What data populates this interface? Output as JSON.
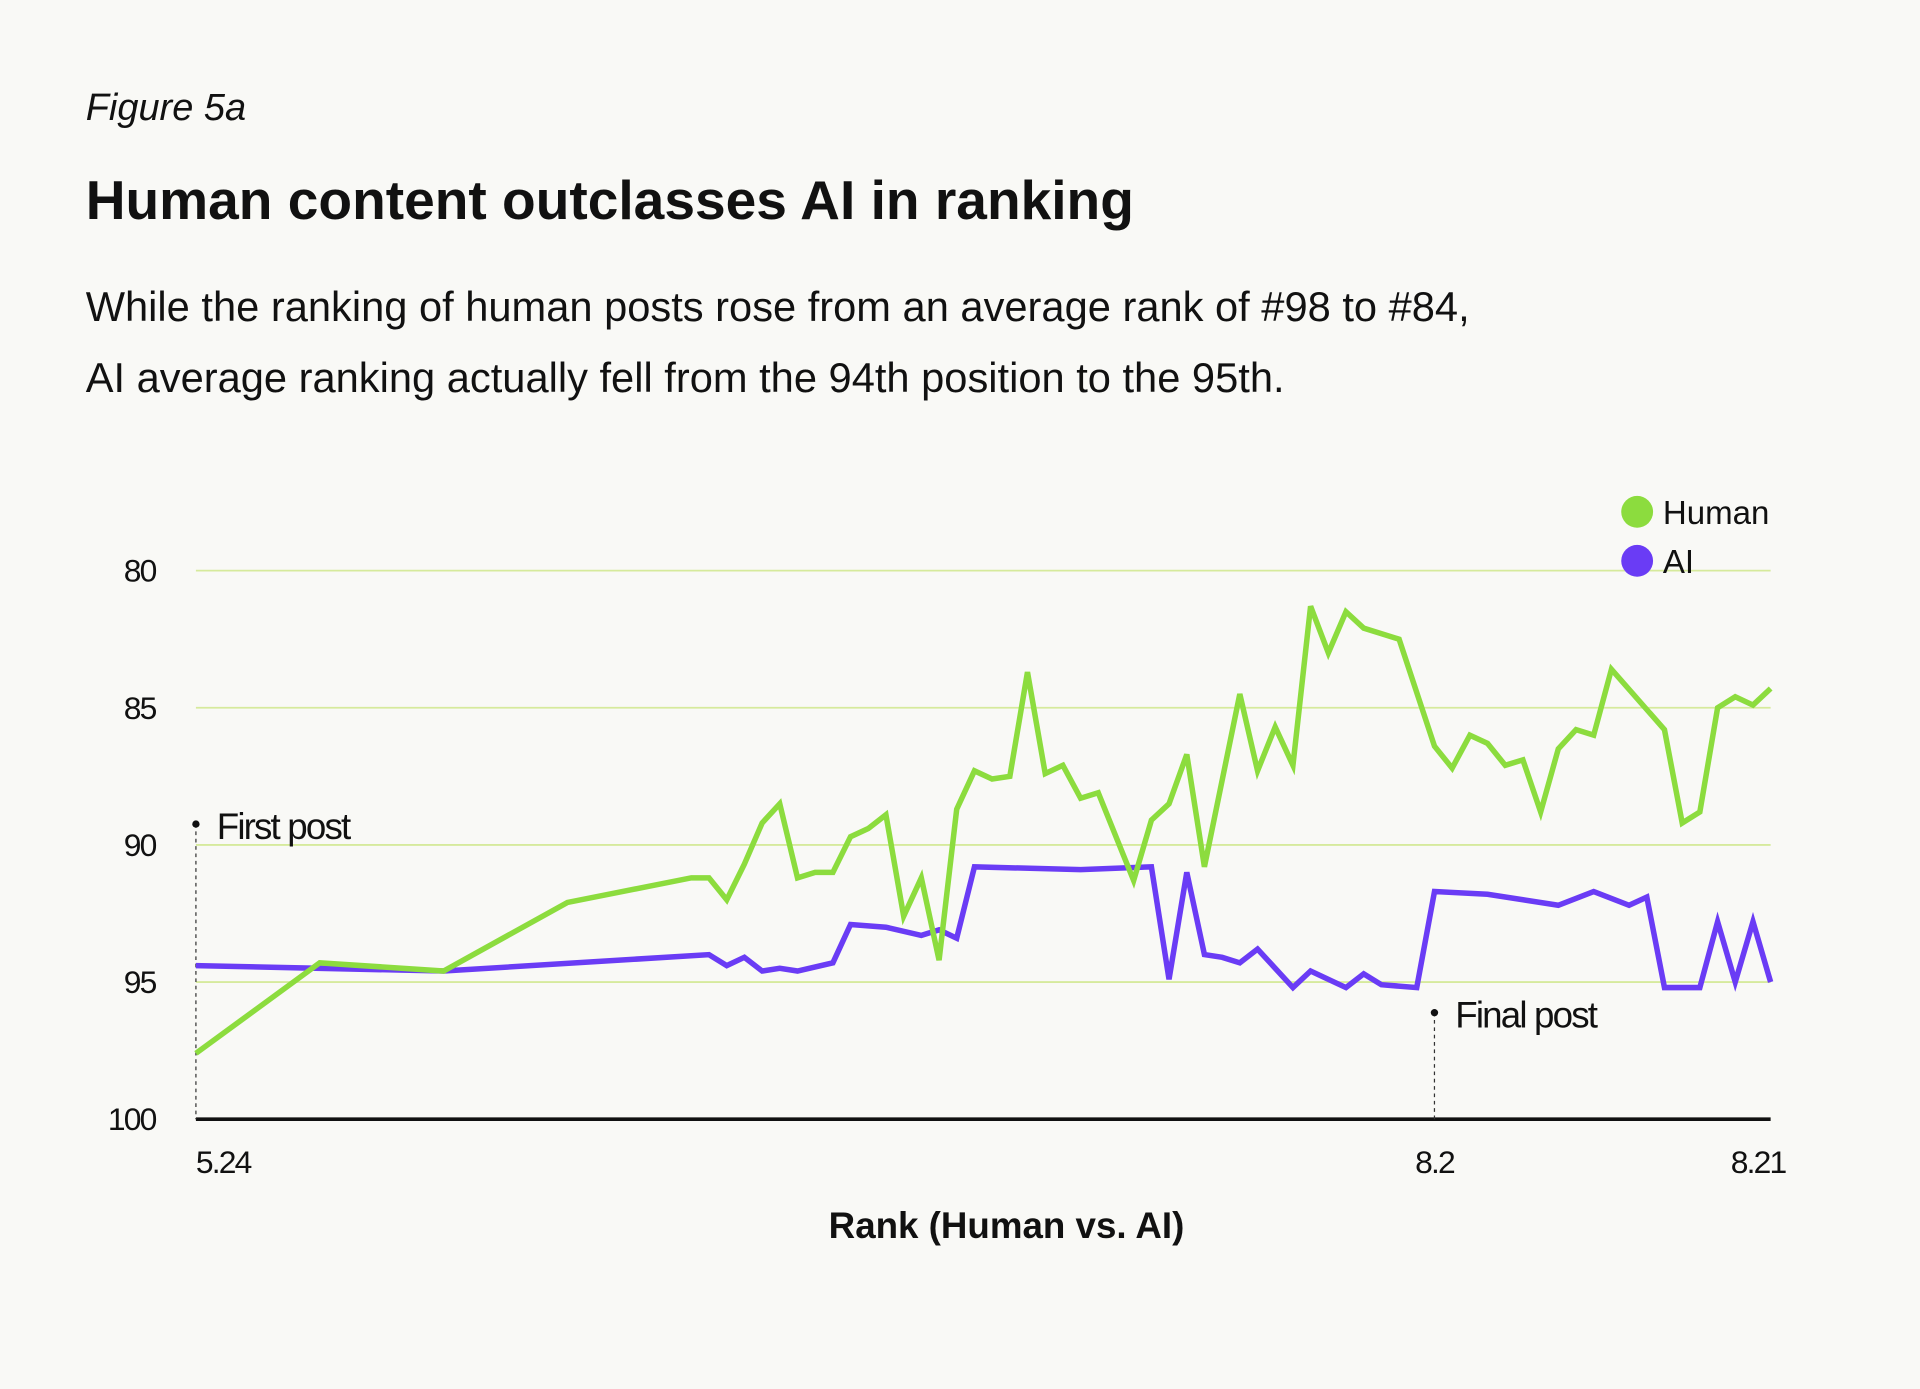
{
  "figure_label": "Figure 5a",
  "title": "Human content outclasses AI in ranking",
  "subtitle_lines": [
    "While the ranking of human posts rose from an average rank of #98 to #84,",
    "AI average ranking actually fell from the 94th position to the 95th."
  ],
  "chart_data": {
    "type": "line",
    "title": "Human content outclasses AI in ranking",
    "xlabel": "Rank (Human vs. AI)",
    "ylabel": "",
    "x_axis": {
      "type": "date",
      "format": "M.D",
      "range": [
        "5.24",
        "8.21"
      ],
      "tick_labels": [
        "5.24",
        "8.2",
        "8.21"
      ]
    },
    "y_axis": {
      "range": [
        80,
        100
      ],
      "inverted": true,
      "ticks": [
        80,
        85,
        90,
        95,
        100
      ]
    },
    "grid": "horizontal",
    "legend": {
      "placement": "top-right",
      "entries": [
        "Human",
        "AI"
      ]
    },
    "annotations": [
      {
        "text": "First post",
        "x": "5.24"
      },
      {
        "text": "Final post",
        "x": "8.2"
      }
    ],
    "series": [
      {
        "name": "Human",
        "color": "#8cdc3e",
        "points": [
          [
            "5.24",
            97.6
          ],
          [
            "5.31",
            94.3
          ],
          [
            "6.7",
            94.6
          ],
          [
            "6.14",
            92.1
          ],
          [
            "6.21",
            91.2
          ],
          [
            "6.22",
            91.2
          ],
          [
            "6.23",
            92.0
          ],
          [
            "6.24",
            90.7
          ],
          [
            "6.25",
            89.2
          ],
          [
            "6.26",
            88.5
          ],
          [
            "6.27",
            91.2
          ],
          [
            "6.28",
            91.0
          ],
          [
            "6.29",
            91.0
          ],
          [
            "6.30",
            89.7
          ],
          [
            "7.1",
            89.4
          ],
          [
            "7.2",
            88.9
          ],
          [
            "7.3",
            92.6
          ],
          [
            "7.4",
            91.2
          ],
          [
            "7.5",
            94.2
          ],
          [
            "7.6",
            88.7
          ],
          [
            "7.7",
            87.3
          ],
          [
            "7.8",
            87.6
          ],
          [
            "7.9",
            87.5
          ],
          [
            "7.10",
            83.7
          ],
          [
            "7.11",
            87.4
          ],
          [
            "7.12",
            87.1
          ],
          [
            "7.13",
            88.3
          ],
          [
            "7.14",
            88.1
          ],
          [
            "7.16",
            91.3
          ],
          [
            "7.17",
            89.1
          ],
          [
            "7.18",
            88.5
          ],
          [
            "7.19",
            86.7
          ],
          [
            "7.20",
            90.8
          ],
          [
            "7.22",
            84.5
          ],
          [
            "7.23",
            87.3
          ],
          [
            "7.24",
            85.7
          ],
          [
            "7.25",
            87.1
          ],
          [
            "7.26",
            81.3
          ],
          [
            "7.27",
            83.0
          ],
          [
            "7.28",
            81.5
          ],
          [
            "7.29",
            82.1
          ],
          [
            "7.31",
            82.5
          ],
          [
            "8.2",
            86.4
          ],
          [
            "8.3",
            87.2
          ],
          [
            "8.4",
            86.0
          ],
          [
            "8.5",
            86.3
          ],
          [
            "8.6",
            87.1
          ],
          [
            "8.7",
            86.9
          ],
          [
            "8.8",
            88.8
          ],
          [
            "8.9",
            86.5
          ],
          [
            "8.10",
            85.8
          ],
          [
            "8.11",
            86.0
          ],
          [
            "8.12",
            83.6
          ],
          [
            "8.15",
            85.8
          ],
          [
            "8.16",
            89.2
          ],
          [
            "8.17",
            88.8
          ],
          [
            "8.18",
            85.0
          ],
          [
            "8.19",
            84.6
          ],
          [
            "8.20",
            84.9
          ],
          [
            "8.21",
            84.3
          ]
        ]
      },
      {
        "name": "AI",
        "color": "#6a3cf5",
        "points": [
          [
            "5.24",
            94.4
          ],
          [
            "6.7",
            94.6
          ],
          [
            "6.22",
            94.0
          ],
          [
            "6.23",
            94.4
          ],
          [
            "6.24",
            94.1
          ],
          [
            "6.25",
            94.6
          ],
          [
            "6.26",
            94.5
          ],
          [
            "6.27",
            94.6
          ],
          [
            "6.29",
            94.3
          ],
          [
            "6.30",
            92.9
          ],
          [
            "7.2",
            93.0
          ],
          [
            "7.4",
            93.3
          ],
          [
            "7.5",
            93.1
          ],
          [
            "7.6",
            93.4
          ],
          [
            "7.7",
            90.8
          ],
          [
            "7.13",
            90.9
          ],
          [
            "7.17",
            90.8
          ],
          [
            "7.18",
            94.9
          ],
          [
            "7.19",
            91.0
          ],
          [
            "7.20",
            94.0
          ],
          [
            "7.21",
            94.1
          ],
          [
            "7.22",
            94.3
          ],
          [
            "7.23",
            93.8
          ],
          [
            "7.25",
            95.2
          ],
          [
            "7.26",
            94.6
          ],
          [
            "7.28",
            95.2
          ],
          [
            "7.29",
            94.7
          ],
          [
            "7.30",
            95.1
          ],
          [
            "8.1",
            95.2
          ],
          [
            "8.2",
            91.7
          ],
          [
            "8.5",
            91.8
          ],
          [
            "8.9",
            92.2
          ],
          [
            "8.11",
            91.7
          ],
          [
            "8.13",
            92.2
          ],
          [
            "8.14",
            91.9
          ],
          [
            "8.15",
            95.2
          ],
          [
            "8.17",
            95.2
          ],
          [
            "8.18",
            92.8
          ],
          [
            "8.19",
            95.0
          ],
          [
            "8.20",
            92.8
          ],
          [
            "8.21",
            95.0
          ]
        ]
      }
    ]
  },
  "colors": {
    "background": "#f9f9f6",
    "gridline": "#d6ea9c",
    "axis": "#111111"
  }
}
